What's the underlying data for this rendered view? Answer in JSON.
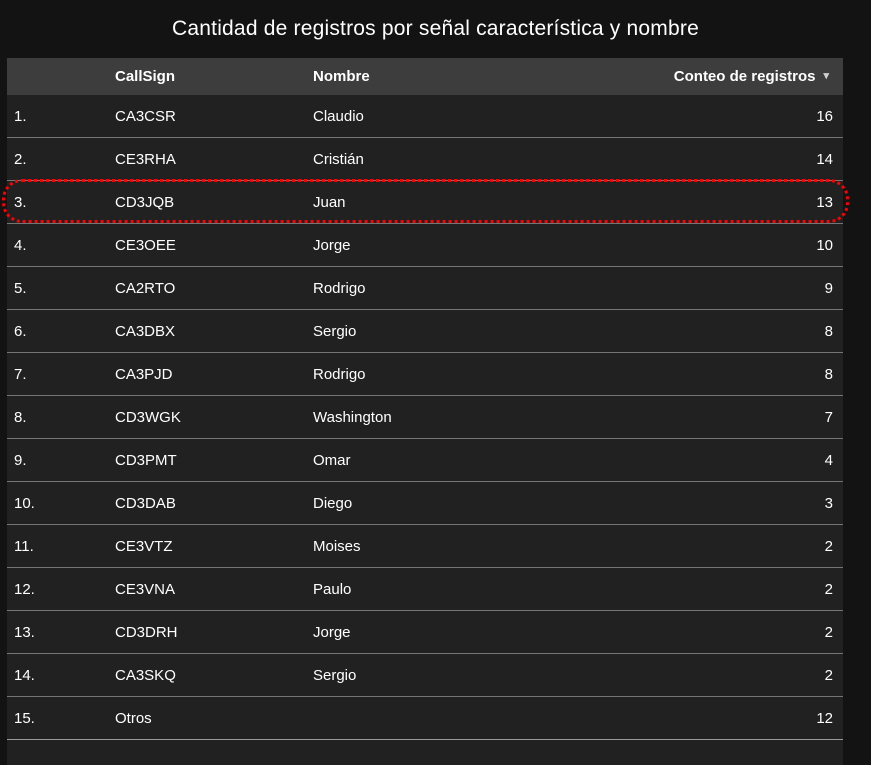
{
  "chart_data": {
    "type": "table",
    "title": "Cantidad de registros por señal característica y nombre",
    "columns": [
      "",
      "CallSign",
      "Nombre",
      "Conteo de registros"
    ],
    "sort": {
      "column": "Conteo de registros",
      "direction": "desc"
    },
    "rows": [
      {
        "rank": "1.",
        "callsign": "CA3CSR",
        "nombre": "Claudio",
        "count": 16,
        "highlighted": false
      },
      {
        "rank": "2.",
        "callsign": "CE3RHA",
        "nombre": "Cristián",
        "count": 14,
        "highlighted": false
      },
      {
        "rank": "3.",
        "callsign": "CD3JQB",
        "nombre": "Juan",
        "count": 13,
        "highlighted": true
      },
      {
        "rank": "4.",
        "callsign": "CE3OEE",
        "nombre": "Jorge",
        "count": 10,
        "highlighted": false
      },
      {
        "rank": "5.",
        "callsign": "CA2RTO",
        "nombre": "Rodrigo",
        "count": 9,
        "highlighted": false
      },
      {
        "rank": "6.",
        "callsign": "CA3DBX",
        "nombre": "Sergio",
        "count": 8,
        "highlighted": false
      },
      {
        "rank": "7.",
        "callsign": "CA3PJD",
        "nombre": "Rodrigo",
        "count": 8,
        "highlighted": false
      },
      {
        "rank": "8.",
        "callsign": "CD3WGK",
        "nombre": "Washington",
        "count": 7,
        "highlighted": false
      },
      {
        "rank": "9.",
        "callsign": "CD3PMT",
        "nombre": "Omar",
        "count": 4,
        "highlighted": false
      },
      {
        "rank": "10.",
        "callsign": "CD3DAB",
        "nombre": "Diego",
        "count": 3,
        "highlighted": false
      },
      {
        "rank": "11.",
        "callsign": "CE3VTZ",
        "nombre": "Moises",
        "count": 2,
        "highlighted": false
      },
      {
        "rank": "12.",
        "callsign": "CE3VNA",
        "nombre": "Paulo",
        "count": 2,
        "highlighted": false
      },
      {
        "rank": "13.",
        "callsign": "CD3DRH",
        "nombre": "Jorge",
        "count": 2,
        "highlighted": false
      },
      {
        "rank": "14.",
        "callsign": "CA3SKQ",
        "nombre": "Sergio",
        "count": 2,
        "highlighted": false
      },
      {
        "rank": "15.",
        "callsign": "Otros",
        "nombre": "",
        "count": 12,
        "highlighted": false
      }
    ]
  },
  "header": {
    "index_label": "",
    "callsign_label": "CallSign",
    "nombre_label": "Nombre",
    "count_label": "Conteo de registros",
    "sort_icon": "▾"
  },
  "colors": {
    "page_bg": "#131313",
    "row_bg": "#212121",
    "header_bg": "#3d3d3d",
    "divider": "#757575",
    "text": "#ffffff",
    "highlight_border": "#ff0000"
  }
}
